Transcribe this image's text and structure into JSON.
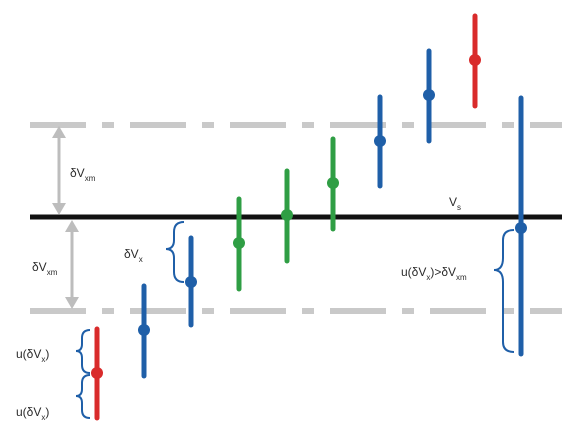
{
  "labels": {
    "dv_xm_upper": {
      "main": "δV",
      "sub": "xm"
    },
    "dv_xm_lower": {
      "main": "δV",
      "sub": "xm"
    },
    "dv_x": {
      "main": "δV",
      "sub": "x"
    },
    "v_s": {
      "main": "V",
      "sub": "s"
    },
    "u_condition": {
      "pre": "u(δV",
      "sub1": "x",
      "mid": ")>δV",
      "sub2": "xm"
    },
    "u_upper": {
      "pre": "u(δV",
      "sub": "x",
      "post": ")"
    },
    "u_lower": {
      "pre": "u(δV",
      "sub": "x",
      "post": ")"
    }
  },
  "colors": {
    "reference_line": "#111111",
    "limit_lines": "#c9c9c9",
    "arrows": "#bdbdbd",
    "in_limits": "#2f9e44",
    "inconclusive": "#1f5fa8",
    "out_of_limits": "#d92b2b",
    "braces": "#1f5fa8"
  },
  "measurements": [
    {
      "status": "out_of_limits",
      "color_key": "out_of_limits"
    },
    {
      "status": "inconclusive",
      "color_key": "inconclusive"
    },
    {
      "status": "inconclusive",
      "color_key": "inconclusive"
    },
    {
      "status": "in_limits",
      "color_key": "in_limits"
    },
    {
      "status": "in_limits",
      "color_key": "in_limits"
    },
    {
      "status": "in_limits",
      "color_key": "in_limits"
    },
    {
      "status": "inconclusive",
      "color_key": "inconclusive"
    },
    {
      "status": "inconclusive",
      "color_key": "inconclusive"
    },
    {
      "status": "out_of_limits",
      "color_key": "out_of_limits"
    },
    {
      "status": "inconclusive",
      "color_key": "inconclusive"
    }
  ]
}
